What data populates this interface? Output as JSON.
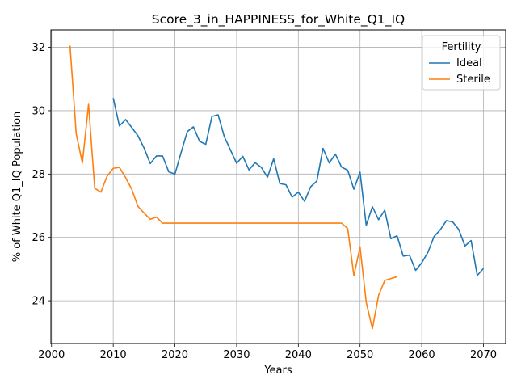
{
  "chart_data": {
    "type": "line",
    "title": "Score_3_in_HAPPINESS_for_White_Q1_IQ",
    "xlabel": "Years",
    "ylabel": "% of White Q1_IQ Population",
    "xlim": [
      1999.9,
      2073.6
    ],
    "ylim": [
      22.65,
      32.55
    ],
    "xticks": [
      2000,
      2010,
      2020,
      2030,
      2040,
      2050,
      2060,
      2070
    ],
    "yticks": [
      24,
      26,
      28,
      30,
      32
    ],
    "grid": true,
    "legend": {
      "title": "Fertility",
      "placement": "upper right"
    },
    "series": [
      {
        "name": "Ideal",
        "color": "#1f77b4",
        "x": [
          2010,
          2011,
          2012,
          2013,
          2014,
          2015,
          2016,
          2017,
          2018,
          2019,
          2020,
          2021,
          2022,
          2023,
          2024,
          2025,
          2026,
          2027,
          2028,
          2029,
          2030,
          2031,
          2032,
          2033,
          2034,
          2035,
          2036,
          2037,
          2038,
          2039,
          2040,
          2041,
          2042,
          2043,
          2044,
          2045,
          2046,
          2047,
          2048,
          2049,
          2050,
          2051,
          2052,
          2053,
          2054,
          2055,
          2056,
          2057,
          2058,
          2059,
          2060,
          2061,
          2062,
          2063,
          2064,
          2065,
          2066,
          2067,
          2068,
          2069,
          2070
        ],
        "y": [
          30.4,
          29.52,
          29.72,
          29.47,
          29.21,
          28.82,
          28.33,
          28.57,
          28.57,
          28.07,
          28.0,
          28.68,
          29.34,
          29.49,
          29.03,
          28.94,
          29.82,
          29.87,
          29.18,
          28.76,
          28.34,
          28.56,
          28.13,
          28.36,
          28.21,
          27.9,
          28.48,
          27.7,
          27.66,
          27.27,
          27.43,
          27.14,
          27.6,
          27.78,
          28.81,
          28.35,
          28.63,
          28.22,
          28.12,
          27.52,
          28.06,
          26.38,
          26.97,
          26.56,
          26.86,
          25.96,
          26.05,
          25.41,
          25.44,
          24.96,
          25.2,
          25.53,
          26.03,
          26.24,
          26.53,
          26.49,
          26.25,
          25.73,
          25.9,
          24.8,
          25.02
        ]
      },
      {
        "name": "Sterile",
        "color": "#ff7f0e",
        "x": [
          2003,
          2004,
          2005,
          2006,
          2007,
          2008,
          2009,
          2010,
          2011,
          2012,
          2013,
          2014,
          2015,
          2016,
          2017,
          2018,
          2019,
          2020,
          2021,
          2022,
          2023,
          2024,
          2025,
          2026,
          2027,
          2028,
          2029,
          2030,
          2031,
          2032,
          2033,
          2034,
          2035,
          2036,
          2037,
          2038,
          2039,
          2040,
          2041,
          2042,
          2043,
          2044,
          2045,
          2046,
          2047,
          2048,
          2049,
          2050,
          2051,
          2052,
          2053,
          2054,
          2055,
          2056
        ],
        "y": [
          32.05,
          29.27,
          28.35,
          30.2,
          27.55,
          27.43,
          27.93,
          28.18,
          28.21,
          27.89,
          27.52,
          26.98,
          26.77,
          26.57,
          26.64,
          26.45,
          26.45,
          26.45,
          26.45,
          26.45,
          26.45,
          26.45,
          26.45,
          26.45,
          26.45,
          26.45,
          26.45,
          26.45,
          26.45,
          26.45,
          26.45,
          26.45,
          26.45,
          26.45,
          26.45,
          26.45,
          26.45,
          26.45,
          26.45,
          26.45,
          26.45,
          26.45,
          26.45,
          26.45,
          26.45,
          26.28,
          24.79,
          25.7,
          23.95,
          23.12,
          24.17,
          24.64,
          24.7,
          24.76
        ]
      }
    ]
  }
}
